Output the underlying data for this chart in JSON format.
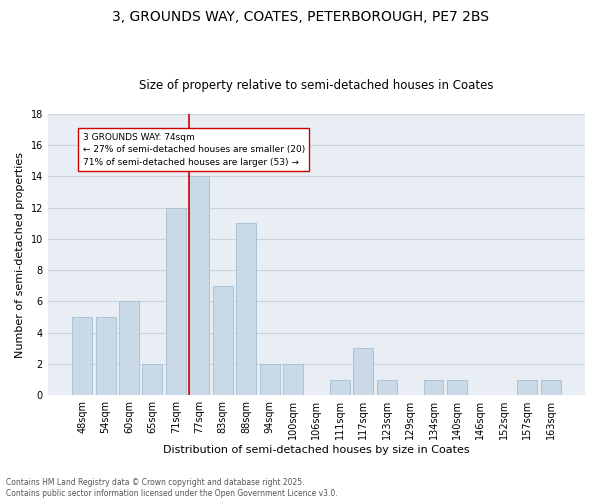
{
  "title": "3, GROUNDS WAY, COATES, PETERBOROUGH, PE7 2BS",
  "subtitle": "Size of property relative to semi-detached houses in Coates",
  "xlabel": "Distribution of semi-detached houses by size in Coates",
  "ylabel": "Number of semi-detached properties",
  "bar_labels": [
    "48sqm",
    "54sqm",
    "60sqm",
    "65sqm",
    "71sqm",
    "77sqm",
    "83sqm",
    "88sqm",
    "94sqm",
    "100sqm",
    "106sqm",
    "111sqm",
    "117sqm",
    "123sqm",
    "129sqm",
    "134sqm",
    "140sqm",
    "146sqm",
    "152sqm",
    "157sqm",
    "163sqm"
  ],
  "bar_values": [
    5,
    5,
    6,
    2,
    12,
    14,
    7,
    11,
    2,
    2,
    0,
    1,
    3,
    1,
    0,
    1,
    1,
    0,
    0,
    1,
    1
  ],
  "bar_color": "#c9d9e8",
  "bar_edgecolor": "#aac4d8",
  "grid_color": "#c8d4dc",
  "background_color": "#e8eef4",
  "vline_index": 5,
  "vline_color": "#cc0000",
  "annotation_line1": "3 GROUNDS WAY: 74sqm",
  "annotation_line2": "← 27% of semi-detached houses are smaller (20)",
  "annotation_line3": "71% of semi-detached houses are larger (53) →",
  "annotation_box_facecolor": "#ffffff",
  "annotation_box_edgecolor": "#cc0000",
  "footer_text": "Contains HM Land Registry data © Crown copyright and database right 2025.\nContains public sector information licensed under the Open Government Licence v3.0.",
  "ylim": [
    0,
    18
  ],
  "yticks": [
    0,
    2,
    4,
    6,
    8,
    10,
    12,
    14,
    16,
    18
  ],
  "title_fontsize": 10,
  "subtitle_fontsize": 8.5,
  "ylabel_fontsize": 8,
  "xlabel_fontsize": 8,
  "tick_fontsize": 7,
  "footer_fontsize": 5.5
}
